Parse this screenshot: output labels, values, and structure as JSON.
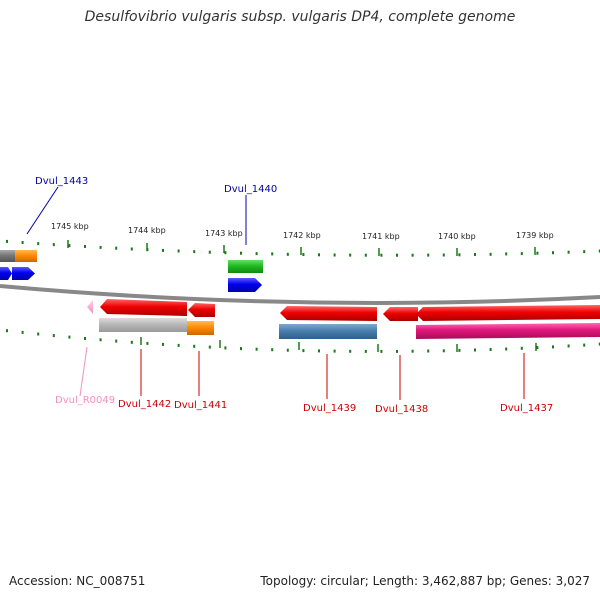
{
  "title": "Desulfovibrio vulgaris subsp. vulgaris DP4, complete genome",
  "footer": {
    "accession": "Accession: NC_008751",
    "summary": "Topology: circular; Length: 3,462,887 bp; Genes: 3,027"
  },
  "ticks": [
    "1745 kbp",
    "1744 kbp",
    "1743 kbp",
    "1742 kbp",
    "1741 kbp",
    "1740 kbp",
    "1739 kbp"
  ],
  "genes": [
    {
      "label": "Dvul_1443",
      "color": "#0000aa"
    },
    {
      "label": "Dvul_1440",
      "color": "#0000aa"
    },
    {
      "label": "Dvul_R0049",
      "color": "#f48fc0"
    },
    {
      "label": "Dvul_1442",
      "color": "#cc0000"
    },
    {
      "label": "Dvul_1441",
      "color": "#cc0000"
    },
    {
      "label": "Dvul_1439",
      "color": "#cc0000"
    },
    {
      "label": "Dvul_1438",
      "color": "#cc0000"
    },
    {
      "label": "Dvul_1437",
      "color": "#cc0000"
    }
  ],
  "colors": {
    "tick_green": "#1a7a1a",
    "backbone": "#888888",
    "cds_red": "#ee0000",
    "blue": "#0000ee",
    "green": "#22bb22",
    "orange": "#ff8c00",
    "gray": "#b8b8b8",
    "steelblue": "#4a7fb0",
    "magenta": "#e0157a",
    "pink": "#f48fc0"
  }
}
